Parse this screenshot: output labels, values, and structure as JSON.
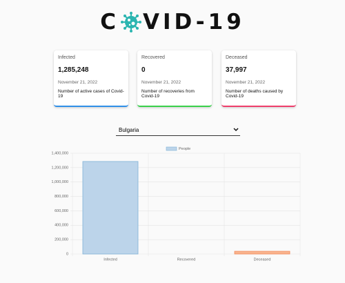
{
  "header": {
    "title_left": "C",
    "title_right": "VID-19"
  },
  "cards": [
    {
      "label": "Infected",
      "value": "1,285,248",
      "date": "November 21, 2022",
      "description": "Number of active cases of Covid-19",
      "color": "#2f8fe8"
    },
    {
      "label": "Recovered",
      "value": "0",
      "date": "November 21, 2022",
      "description": "Number of recoveries from Covid-19",
      "color": "#39d04a"
    },
    {
      "label": "Deceased",
      "value": "37,997",
      "date": "November 21, 2022",
      "description": "Number of deaths caused by Covid-19",
      "color": "#ee3d6b"
    }
  ],
  "selector": {
    "selected": "Bulgaria"
  },
  "chart_data": {
    "type": "bar",
    "legend": "People",
    "categories": [
      "Infected",
      "Recovered",
      "Deceased"
    ],
    "values": [
      1285248,
      0,
      37997
    ],
    "colors": [
      "#bcd4ea",
      "#bfe6c4",
      "#f9b48e"
    ],
    "border_colors": [
      "#7fb2d6",
      "#7fcf8a",
      "#f28a5a"
    ],
    "ylim": [
      0,
      1400000
    ],
    "yticks": [
      0,
      {
        "value": 200000,
        "label": "200,000"
      },
      {
        "value": 400000,
        "label": "400,000"
      },
      {
        "value": 600000,
        "label": "600,000"
      },
      {
        "value": 800000,
        "label": "800,000"
      },
      {
        "value": 1000000,
        "label": "1,000,000"
      },
      {
        "value": 1200000,
        "label": "1,200,000"
      },
      {
        "value": 1400000,
        "label": "1,400,000"
      }
    ],
    "grid": true
  }
}
